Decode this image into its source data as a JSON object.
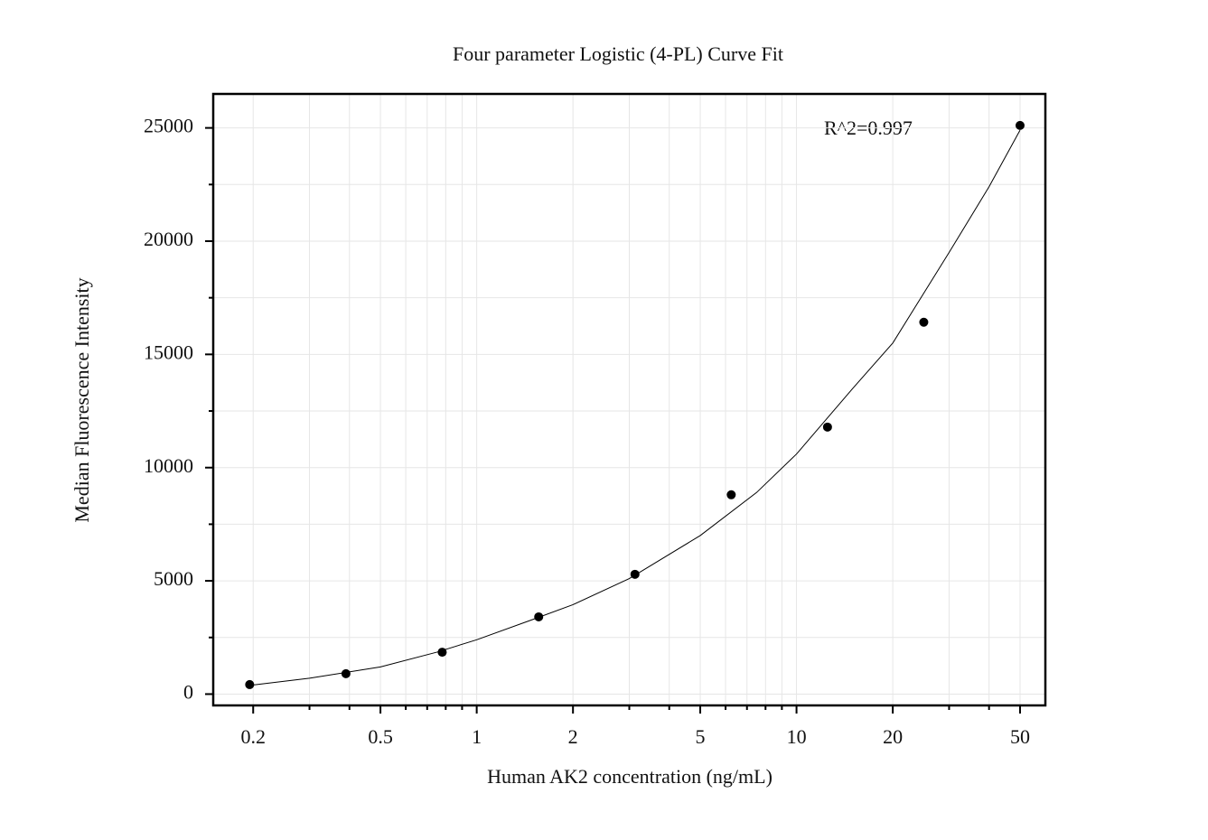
{
  "chart_data": {
    "type": "scatter",
    "title": "Four parameter Logistic (4-PL) Curve Fit",
    "xlabel": "Human AK2 concentration (ng/mL)",
    "ylabel": "Median Fluorescence Intensity",
    "annotation": "R^2=0.997",
    "xscale": "log",
    "grid": true,
    "xlim": [
      0.15,
      60
    ],
    "ylim": [
      -500,
      26500
    ],
    "xticks": [
      0.2,
      0.5,
      1,
      2,
      5,
      10,
      20,
      50
    ],
    "xminor_ticks": [
      0.3,
      0.4,
      0.6,
      0.7,
      0.8,
      0.9,
      3,
      4,
      6,
      7,
      8,
      9,
      30,
      40
    ],
    "yticks": [
      0,
      5000,
      10000,
      15000,
      20000,
      25000
    ],
    "yminor_ticks": [
      2500,
      7500,
      12500,
      17500,
      22500
    ],
    "series": [
      {
        "color": "#000000",
        "x": [
          0.195,
          0.39,
          0.78,
          1.5625,
          3.125,
          6.25,
          12.5,
          25,
          50
        ],
        "values": [
          420,
          900,
          1850,
          3410,
          5290,
          8800,
          11790,
          16420,
          25110
        ]
      }
    ],
    "curve": {
      "color": "#000000",
      "x": [
        0.2,
        0.3,
        0.5,
        0.75,
        1,
        1.5,
        2,
        3,
        5,
        7.5,
        10,
        15,
        20,
        30,
        40,
        50
      ],
      "values": [
        400,
        700,
        1200,
        1850,
        2400,
        3300,
        3950,
        5100,
        7000,
        8900,
        10600,
        13500,
        15500,
        19500,
        22400,
        24900
      ]
    }
  }
}
